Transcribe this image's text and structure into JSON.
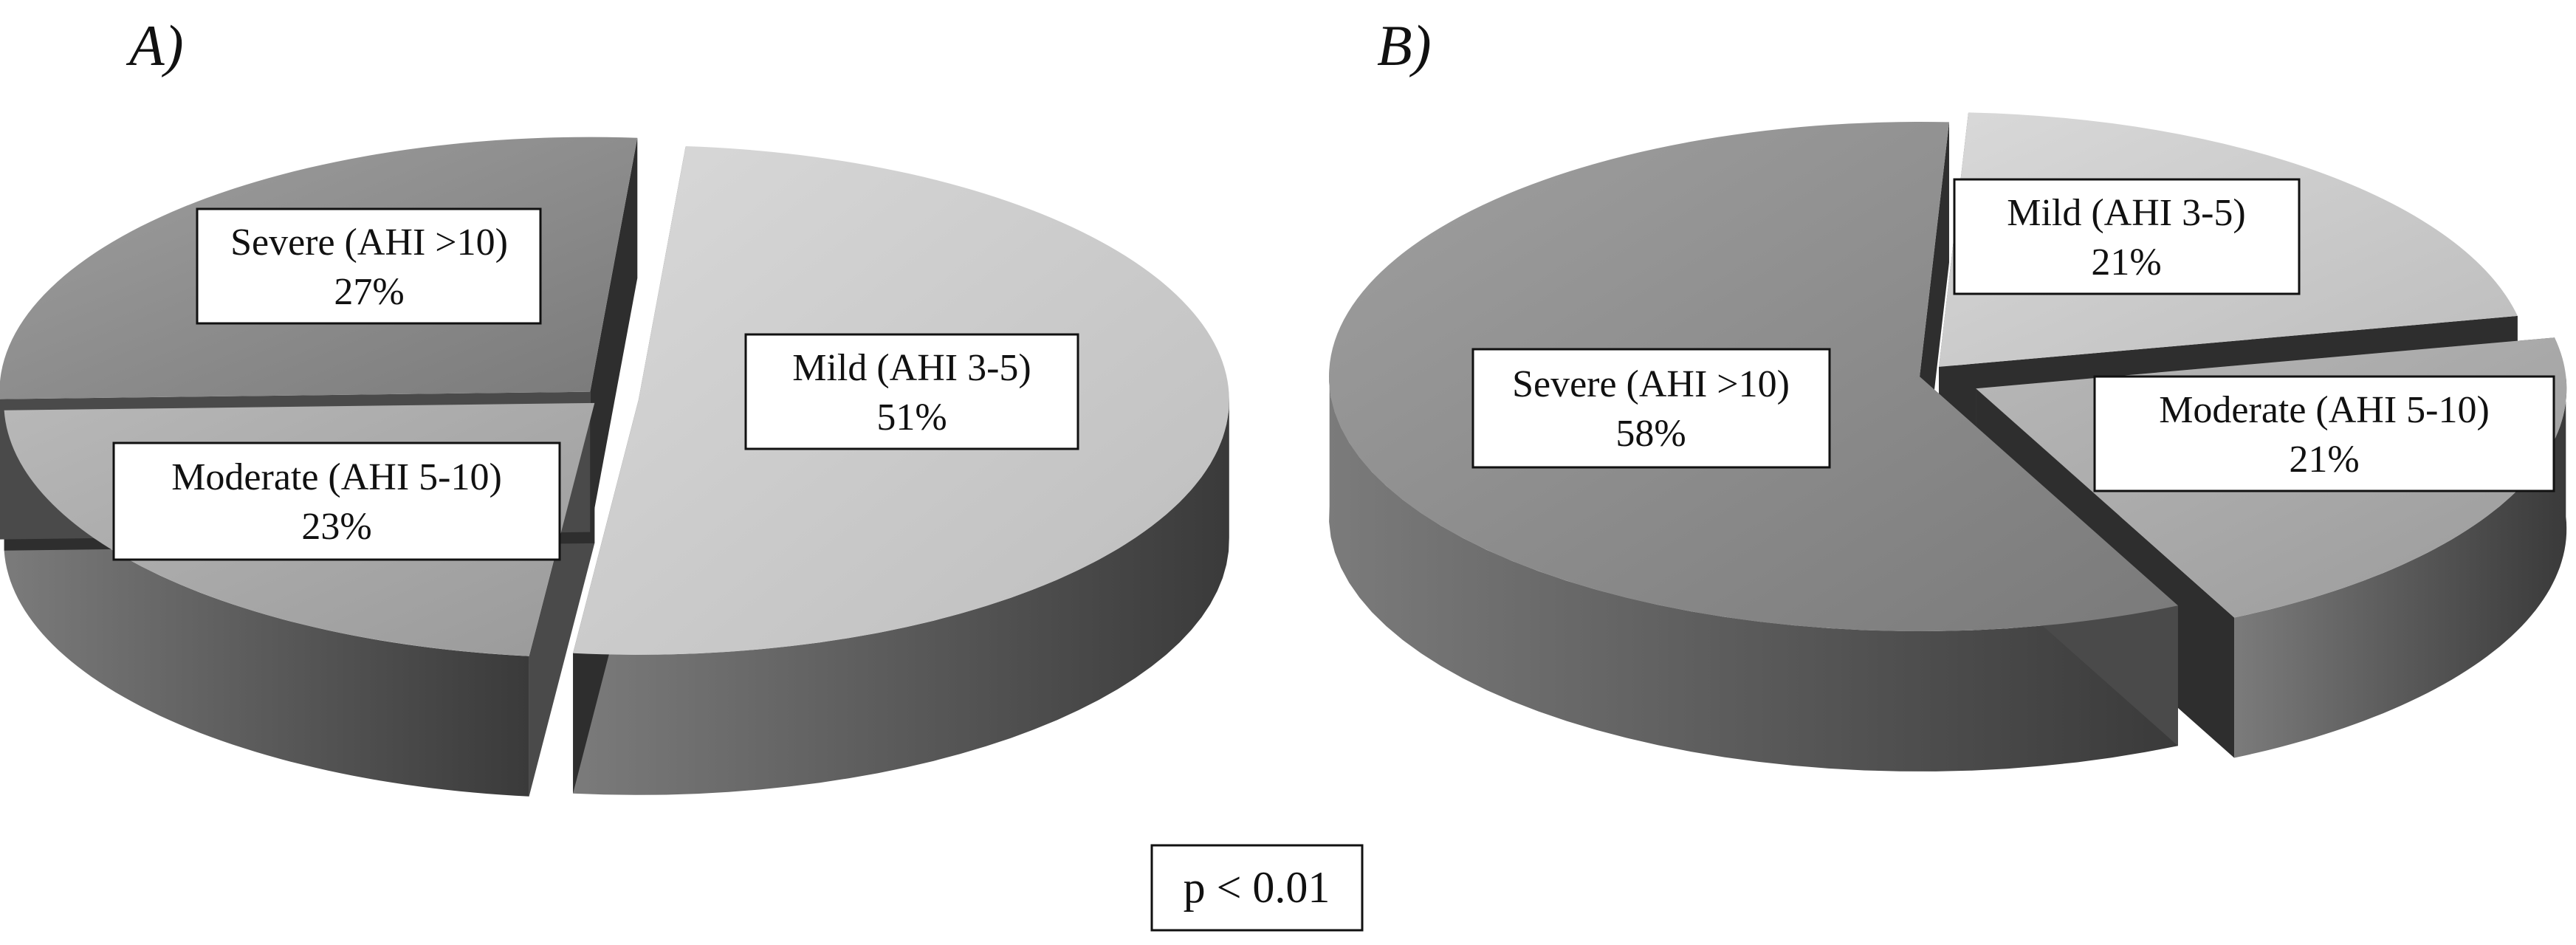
{
  "chart_data": [
    {
      "type": "pie",
      "panel_label": "A)",
      "slices": [
        {
          "label": "Mild (AHI 3-5)",
          "value": 51,
          "value_label": "51%"
        },
        {
          "label": "Moderate (AHI 5-10)",
          "value": 23,
          "value_label": "23%"
        },
        {
          "label": "Severe (AHI >10)",
          "value": 27,
          "value_label": "27%"
        }
      ]
    },
    {
      "type": "pie",
      "panel_label": "B)",
      "slices": [
        {
          "label": "Mild (AHI 3-5)",
          "value": 21,
          "value_label": "21%"
        },
        {
          "label": "Moderate (AHI 5-10)",
          "value": 21,
          "value_label": "21%"
        },
        {
          "label": "Severe (AHI >10)",
          "value": 58,
          "value_label": "58%"
        }
      ]
    }
  ],
  "annotation": "p < 0.01",
  "colors": {
    "mild": "#cfcfcf",
    "moderate": "#a9a9a9",
    "severe": "#8c8c8c",
    "outline": "#111111"
  }
}
